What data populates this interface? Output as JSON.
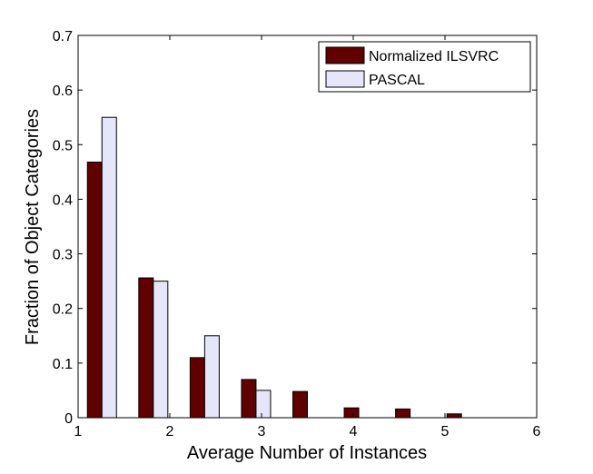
{
  "chart_data": {
    "type": "bar",
    "title": "",
    "xlabel": "Average Number of Instances",
    "ylabel": "Fraction of Object Categories",
    "xlim": [
      1,
      6
    ],
    "ylim": [
      0,
      0.7
    ],
    "xticks": [
      1,
      2,
      3,
      4,
      5,
      6
    ],
    "xtick_labels": [
      "1",
      "2",
      "3",
      "4",
      "5",
      "6"
    ],
    "yticks": [
      0,
      0.1,
      0.2,
      0.3,
      0.4,
      0.5,
      0.6,
      0.7
    ],
    "ytick_labels": [
      "0",
      "0.1",
      "0.2",
      "0.3",
      "0.4",
      "0.5",
      "0.6",
      "0.7"
    ],
    "grid": false,
    "legend_position": "top-right",
    "bin_centers": [
      1.26,
      1.82,
      2.38,
      2.94,
      3.5,
      4.06,
      4.62,
      5.18
    ],
    "series": [
      {
        "name": "Normalized ILSVRC",
        "color": "#600000",
        "values": [
          0.468,
          0.256,
          0.11,
          0.07,
          0.048,
          0.018,
          0.016,
          0.007
        ]
      },
      {
        "name": "PASCAL",
        "color": "#e6e6fa",
        "values": [
          0.55,
          0.25,
          0.15,
          0.05,
          0,
          0,
          0,
          0
        ]
      }
    ]
  }
}
